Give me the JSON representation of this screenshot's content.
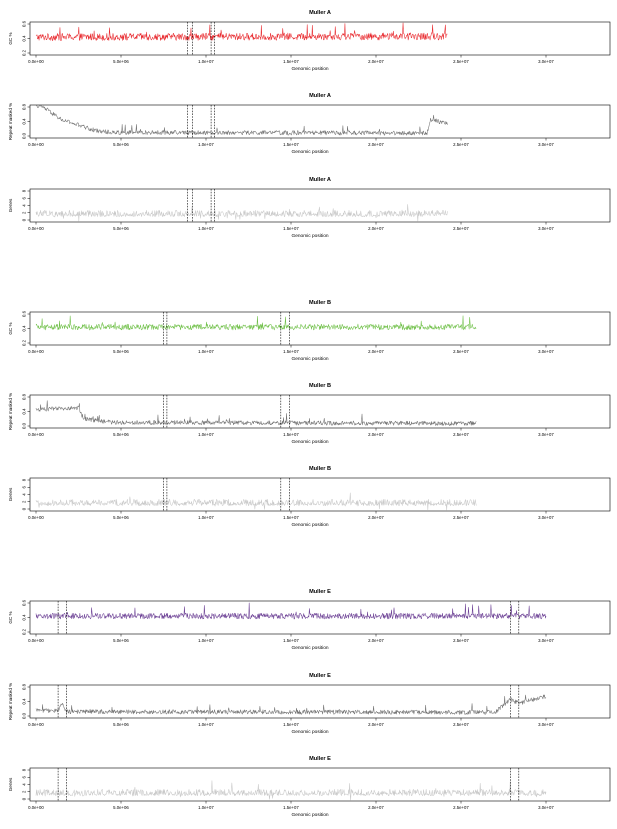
{
  "chart_data": [
    {
      "type": "line",
      "title": "Muller A",
      "xlabel": "Genomic position",
      "ylabel": "GC %",
      "color": "#e8262b",
      "xlim": [
        0,
        30000000
      ],
      "ylim": [
        0.2,
        0.6
      ],
      "yticks": [
        "0.2",
        "0.4",
        "0.6"
      ],
      "xticks": [
        "0.0e+00",
        "5.0e+06",
        "1.0e+07",
        "1.5e+07",
        "2.0e+07",
        "2.5e+07",
        "3.0e+07"
      ],
      "x_end": 24200000,
      "boundaries": [
        8900000,
        9200000,
        10300000,
        10500000
      ],
      "profile": [
        [
          0,
          0.42
        ],
        [
          24200000,
          0.43
        ]
      ],
      "noise": 0.05
    },
    {
      "type": "line",
      "title": "Muller A",
      "xlabel": "Genomic position",
      "ylabel": "Repeat masked %",
      "color": "#6f6f6f",
      "xlim": [
        0,
        30000000
      ],
      "ylim": [
        0,
        0.8
      ],
      "yticks": [
        "0.0",
        "0.4",
        "0.8"
      ],
      "xticks": [
        "0.0e+00",
        "5.0e+06",
        "1.0e+07",
        "1.5e+07",
        "2.0e+07",
        "2.5e+07",
        "3.0e+07"
      ],
      "x_end": 24200000,
      "boundaries": [
        8900000,
        9200000,
        10300000,
        10500000
      ],
      "profile": [
        [
          0,
          0.85
        ],
        [
          400000,
          0.8
        ],
        [
          1500000,
          0.45
        ],
        [
          2500000,
          0.3
        ],
        [
          3500000,
          0.15
        ],
        [
          4500000,
          0.1
        ],
        [
          23000000,
          0.08
        ],
        [
          23200000,
          0.45
        ],
        [
          24200000,
          0.35
        ]
      ],
      "noise": 0.06
    },
    {
      "type": "line",
      "title": "Muller A",
      "xlabel": "Genomic position",
      "ylabel": "Genes",
      "color": "#c8c8c8",
      "xlim": [
        0,
        30000000
      ],
      "ylim": [
        0,
        8
      ],
      "yticks": [
        "0",
        "2",
        "4",
        "6",
        "8"
      ],
      "xticks": [
        "0.0e+00",
        "5.0e+06",
        "1.0e+07",
        "1.5e+07",
        "2.0e+07",
        "2.5e+07",
        "3.0e+07"
      ],
      "x_end": 24200000,
      "boundaries": [
        8900000,
        9200000,
        10300000,
        10500000
      ],
      "profile": [
        [
          0,
          1.5
        ],
        [
          24200000,
          1.5
        ]
      ],
      "noise": 1.0
    },
    {
      "type": "line",
      "title": "Muller B",
      "xlabel": "Genomic position",
      "ylabel": "GC %",
      "color": "#6dbf45",
      "xlim": [
        0,
        30000000
      ],
      "ylim": [
        0.2,
        0.6
      ],
      "yticks": [
        "0.2",
        "0.4",
        "0.6"
      ],
      "xticks": [
        "0.0e+00",
        "5.0e+06",
        "1.0e+07",
        "1.5e+07",
        "2.0e+07",
        "2.5e+07",
        "3.0e+07"
      ],
      "x_end": 25900000,
      "boundaries": [
        7500000,
        7700000,
        14400000,
        14900000
      ],
      "profile": [
        [
          0,
          0.42
        ],
        [
          25900000,
          0.42
        ]
      ],
      "noise": 0.04
    },
    {
      "type": "line",
      "title": "Muller B",
      "xlabel": "Genomic position",
      "ylabel": "Repeat masked %",
      "color": "#6f6f6f",
      "xlim": [
        0,
        30000000
      ],
      "ylim": [
        0,
        0.8
      ],
      "yticks": [
        "0.0",
        "0.4",
        "0.8"
      ],
      "xticks": [
        "0.0e+00",
        "5.0e+06",
        "1.0e+07",
        "1.5e+07",
        "2.0e+07",
        "2.5e+07",
        "3.0e+07"
      ],
      "x_end": 25900000,
      "boundaries": [
        7500000,
        7700000,
        14400000,
        14900000
      ],
      "profile": [
        [
          0,
          0.45
        ],
        [
          2500000,
          0.5
        ],
        [
          2800000,
          0.2
        ],
        [
          4500000,
          0.1
        ],
        [
          25900000,
          0.07
        ]
      ],
      "noise": 0.06
    },
    {
      "type": "line",
      "title": "Muller B",
      "xlabel": "Genomic position",
      "ylabel": "Genes",
      "color": "#c8c8c8",
      "xlim": [
        0,
        30000000
      ],
      "ylim": [
        0,
        8
      ],
      "yticks": [
        "0",
        "2",
        "4",
        "6",
        "8"
      ],
      "xticks": [
        "0.0e+00",
        "5.0e+06",
        "1.0e+07",
        "1.5e+07",
        "2.0e+07",
        "2.5e+07",
        "3.0e+07"
      ],
      "x_end": 25900000,
      "boundaries": [
        7500000,
        7700000,
        14400000,
        14900000
      ],
      "profile": [
        [
          0,
          1.5
        ],
        [
          25900000,
          1.5
        ]
      ],
      "noise": 1.0
    },
    {
      "type": "line",
      "title": "Muller E",
      "xlabel": "Genomic position",
      "ylabel": "GC %",
      "color": "#6b3f94",
      "xlim": [
        0,
        30000000
      ],
      "ylim": [
        0.2,
        0.6
      ],
      "yticks": [
        "0.2",
        "0.4",
        "0.6"
      ],
      "xticks": [
        "0.0e+00",
        "5.0e+06",
        "1.0e+07",
        "1.5e+07",
        "2.0e+07",
        "2.5e+07",
        "3.0e+07"
      ],
      "x_end": 30000000,
      "boundaries": [
        1300000,
        1800000,
        27900000,
        28400000
      ],
      "profile": [
        [
          0,
          0.42
        ],
        [
          30000000,
          0.42
        ]
      ],
      "noise": 0.04
    },
    {
      "type": "line",
      "title": "Muller E",
      "xlabel": "Genomic position",
      "ylabel": "Repeat masked %",
      "color": "#6f6f6f",
      "xlim": [
        0,
        30000000
      ],
      "ylim": [
        0,
        0.8
      ],
      "yticks": [
        "0.0",
        "0.4",
        "0.8"
      ],
      "xticks": [
        "0.0e+00",
        "5.0e+06",
        "1.0e+07",
        "1.5e+07",
        "2.0e+07",
        "2.5e+07",
        "3.0e+07"
      ],
      "x_end": 30000000,
      "boundaries": [
        1300000,
        1800000,
        27900000,
        28400000
      ],
      "profile": [
        [
          0,
          0.15
        ],
        [
          1300000,
          0.15
        ],
        [
          1500000,
          0.35
        ],
        [
          1800000,
          0.12
        ],
        [
          27000000,
          0.1
        ],
        [
          27900000,
          0.45
        ],
        [
          28400000,
          0.35
        ],
        [
          30000000,
          0.55
        ]
      ],
      "noise": 0.06
    },
    {
      "type": "line",
      "title": "Muller E",
      "xlabel": "Genomic position",
      "ylabel": "Genes",
      "color": "#c8c8c8",
      "xlim": [
        0,
        30000000
      ],
      "ylim": [
        0,
        8
      ],
      "yticks": [
        "0",
        "2",
        "4",
        "6",
        "8"
      ],
      "xticks": [
        "0.0e+00",
        "5.0e+06",
        "1.0e+07",
        "1.5e+07",
        "2.0e+07",
        "2.5e+07",
        "3.0e+07"
      ],
      "x_end": 30000000,
      "boundaries": [
        1300000,
        1800000,
        27900000,
        28400000
      ],
      "profile": [
        [
          0,
          1.5
        ],
        [
          30000000,
          1.5
        ]
      ],
      "noise": 1.0
    }
  ]
}
